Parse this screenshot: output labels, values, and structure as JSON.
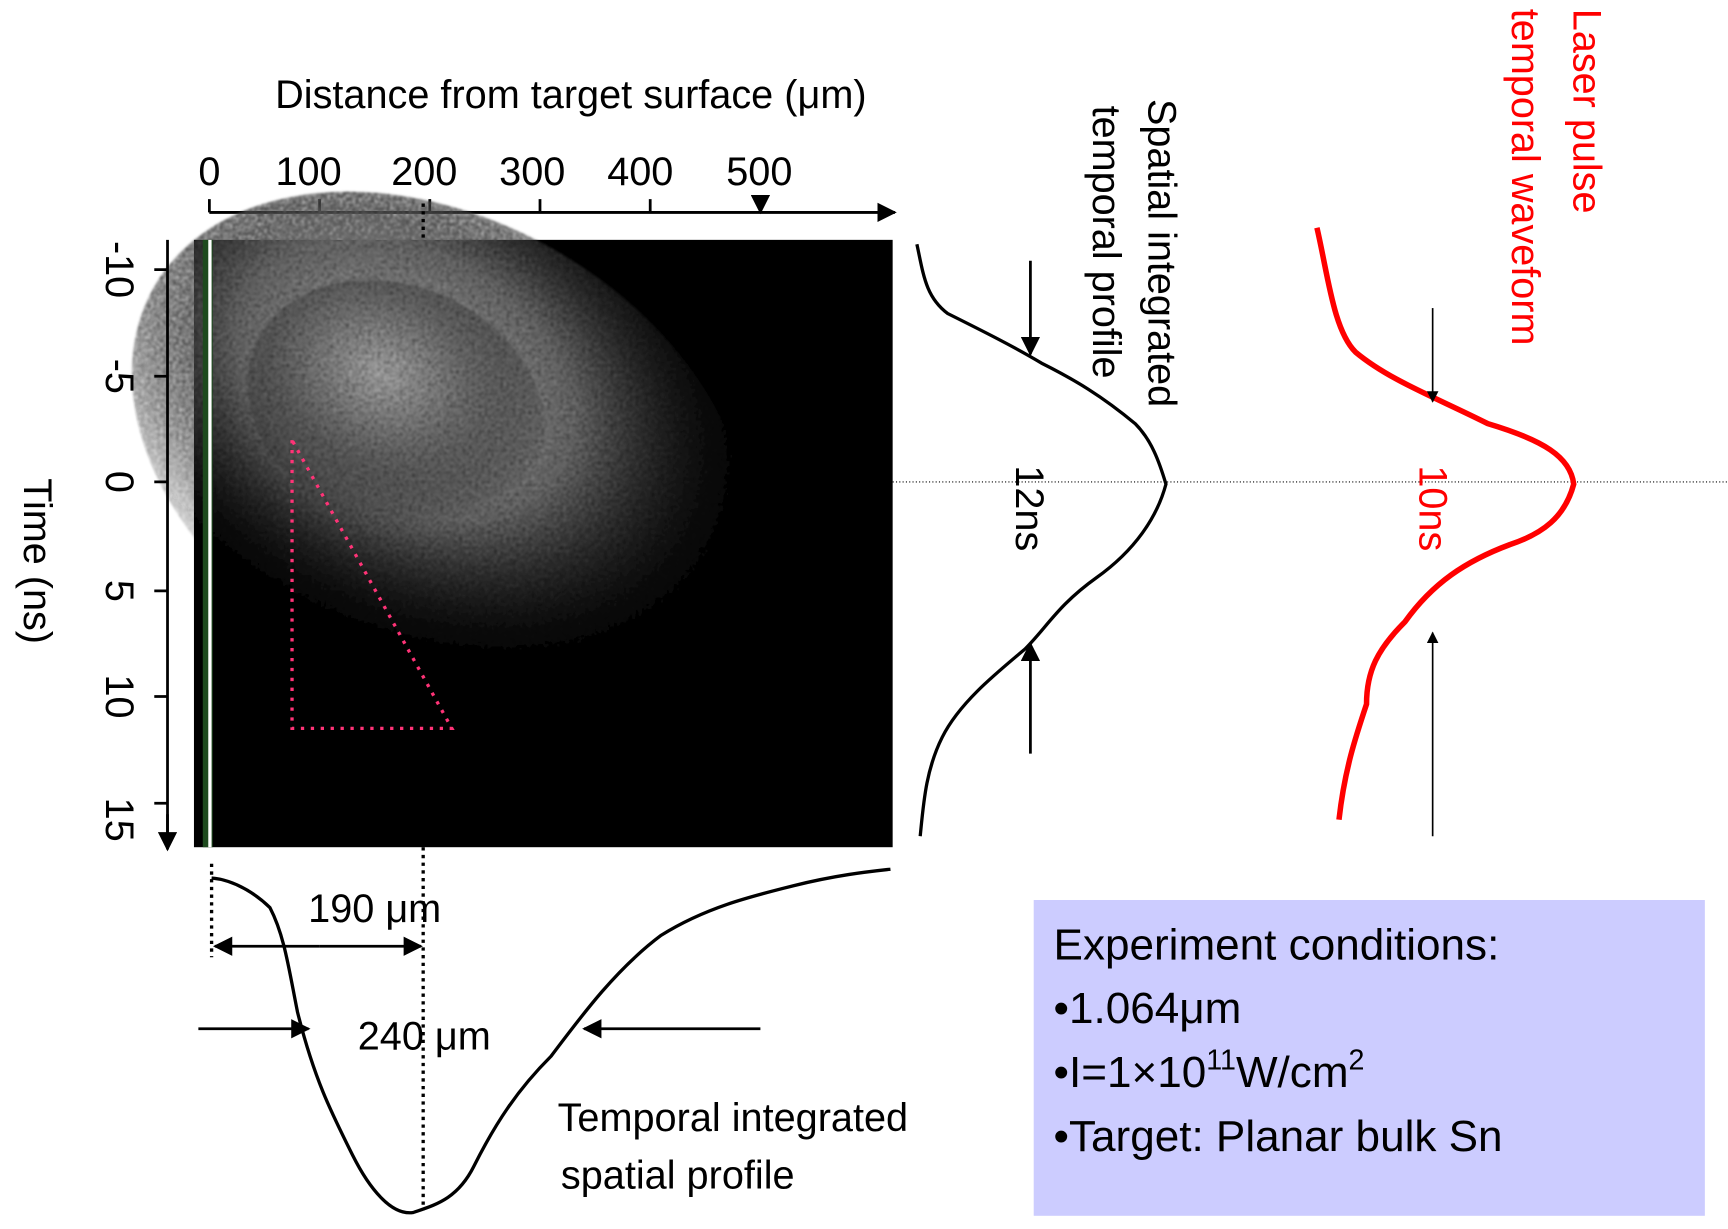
{
  "top_axis": {
    "title": "Distance from target surface (μm)",
    "ticks": [
      "0",
      "100",
      "200",
      "300",
      "400",
      "500"
    ]
  },
  "left_axis": {
    "title": "Time (ns)",
    "ticks": [
      "-10",
      "-5",
      "0",
      "5",
      "10",
      "15"
    ]
  },
  "temporal_profile": {
    "label": [
      "Spatial integrated",
      "temporal profile"
    ],
    "width": "12ns"
  },
  "laser_pulse": {
    "label": [
      "Laser pulse",
      "temporal waveform"
    ],
    "width": "10ns"
  },
  "spatial_profile": {
    "label": [
      "Temporal integrated",
      "spatial profile"
    ],
    "peak_distance": "190 μm",
    "width": "240 μm"
  },
  "conditions": {
    "title": "Experiment conditions:",
    "items": [
      "•1.064μm",
      {
        "base": "•I=1×10",
        "exp": "11",
        "unit": "W/cm",
        "unit_exp": "2"
      },
      "•Target: Planar bulk Sn"
    ]
  }
}
